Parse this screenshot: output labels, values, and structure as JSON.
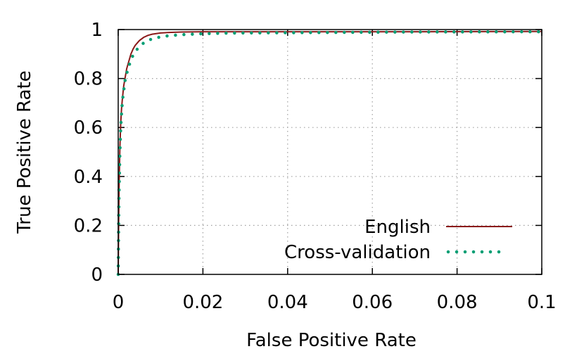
{
  "chart_data": {
    "type": "line",
    "xlabel": "False Positive Rate",
    "ylabel": "True Positive Rate",
    "xlim": [
      0,
      0.1
    ],
    "ylim": [
      0,
      1
    ],
    "xticks": [
      0,
      0.02,
      0.04,
      0.06,
      0.08,
      0.1
    ],
    "xtick_labels": [
      "0",
      "0.02",
      "0.04",
      "0.06",
      "0.08",
      "0.1"
    ],
    "yticks": [
      0,
      0.2,
      0.4,
      0.6,
      0.8,
      1
    ],
    "ytick_labels": [
      "0",
      "0.2",
      "0.4",
      "0.6",
      "0.8",
      "1"
    ],
    "grid": true,
    "legend_position": "bottom-right",
    "series": [
      {
        "name": "English",
        "color": "#8b1a1a",
        "style": "solid",
        "x": [
          0,
          0.0001,
          0.0002,
          0.0004,
          0.0006,
          0.0008,
          0.001,
          0.0013,
          0.0016,
          0.002,
          0.0025,
          0.003,
          0.0035,
          0.004,
          0.005,
          0.006,
          0.007,
          0.008,
          0.01,
          0.012,
          0.015,
          0.02,
          0.03,
          0.05,
          0.07,
          0.1
        ],
        "y": [
          0,
          0.2,
          0.35,
          0.52,
          0.62,
          0.68,
          0.72,
          0.77,
          0.8,
          0.84,
          0.87,
          0.9,
          0.92,
          0.935,
          0.955,
          0.968,
          0.976,
          0.981,
          0.986,
          0.988,
          0.99,
          0.991,
          0.991,
          0.991,
          0.991,
          0.992
        ]
      },
      {
        "name": "Cross-validation",
        "color": "#009e73",
        "style": "dotted",
        "x": [
          0,
          0.0001,
          0.0002,
          0.0004,
          0.0006,
          0.0008,
          0.001,
          0.0013,
          0.0016,
          0.002,
          0.0025,
          0.003,
          0.0035,
          0.004,
          0.005,
          0.006,
          0.007,
          0.008,
          0.01,
          0.012,
          0.015,
          0.02,
          0.025,
          0.03,
          0.04,
          0.05,
          0.07,
          0.1
        ],
        "y": [
          0,
          0.2,
          0.34,
          0.5,
          0.6,
          0.66,
          0.71,
          0.75,
          0.79,
          0.82,
          0.85,
          0.875,
          0.895,
          0.91,
          0.93,
          0.945,
          0.955,
          0.962,
          0.97,
          0.975,
          0.979,
          0.983,
          0.985,
          0.986,
          0.987,
          0.988,
          0.99,
          0.991
        ]
      }
    ]
  }
}
